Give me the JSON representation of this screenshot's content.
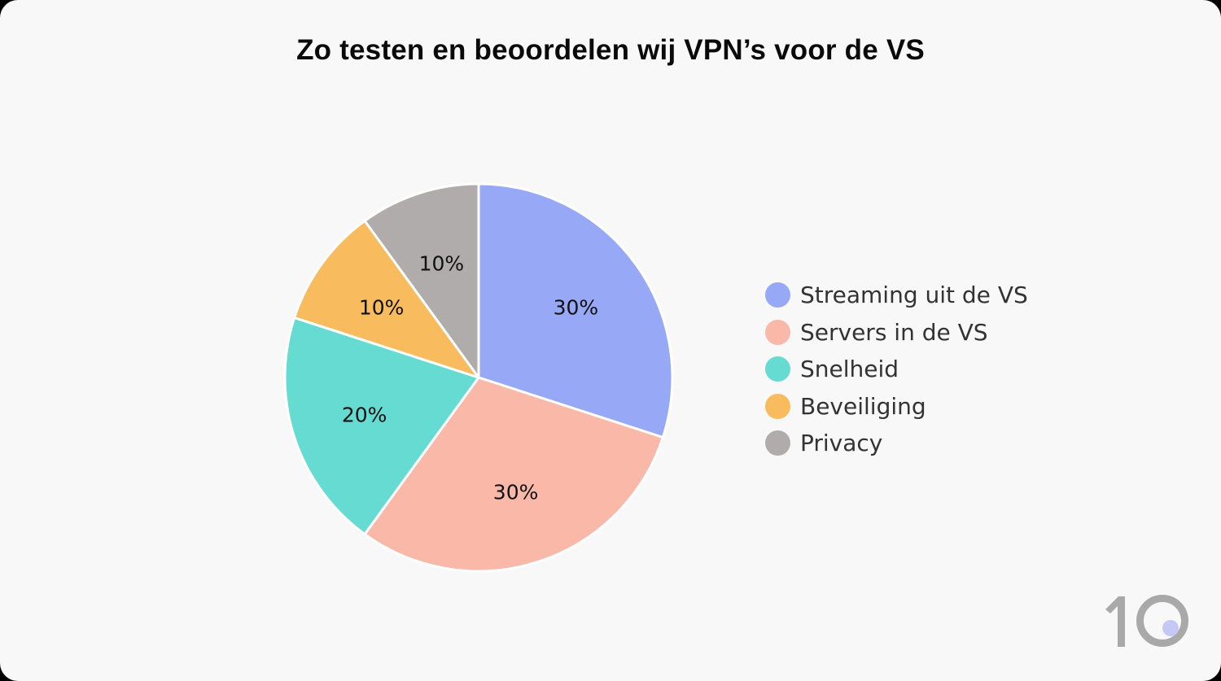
{
  "title": "Zo testen en beoordelen wij VPN’s voor de VS",
  "chart_data": {
    "type": "pie",
    "title": "Zo testen en beoordelen wij VPN’s voor de VS",
    "categories": [
      "Streaming uit de VS",
      "Servers in de VS",
      "Snelheid",
      "Beveiliging",
      "Privacy"
    ],
    "values": [
      30,
      30,
      20,
      10,
      10
    ],
    "labels": [
      "30%",
      "30%",
      "20%",
      "10%",
      "10%"
    ],
    "colors": [
      "#97a9f6",
      "#f9b8a8",
      "#66dbd2",
      "#f8bb5e",
      "#b0acab"
    ],
    "legend_position": "right",
    "start_angle": "12 o'clock, clockwise"
  },
  "legend": {
    "items": [
      {
        "label": "Streaming uit de VS",
        "color": "#97a9f6"
      },
      {
        "label": "Servers in de VS",
        "color": "#f9b8a8"
      },
      {
        "label": "Snelheid",
        "color": "#66dbd2"
      },
      {
        "label": "Beveiliging",
        "color": "#f8bb5e"
      },
      {
        "label": "Privacy",
        "color": "#b0acab"
      }
    ]
  },
  "logo": {
    "text": "10",
    "dot_color": "#c5c8f5",
    "color": "#a9a9a9"
  }
}
